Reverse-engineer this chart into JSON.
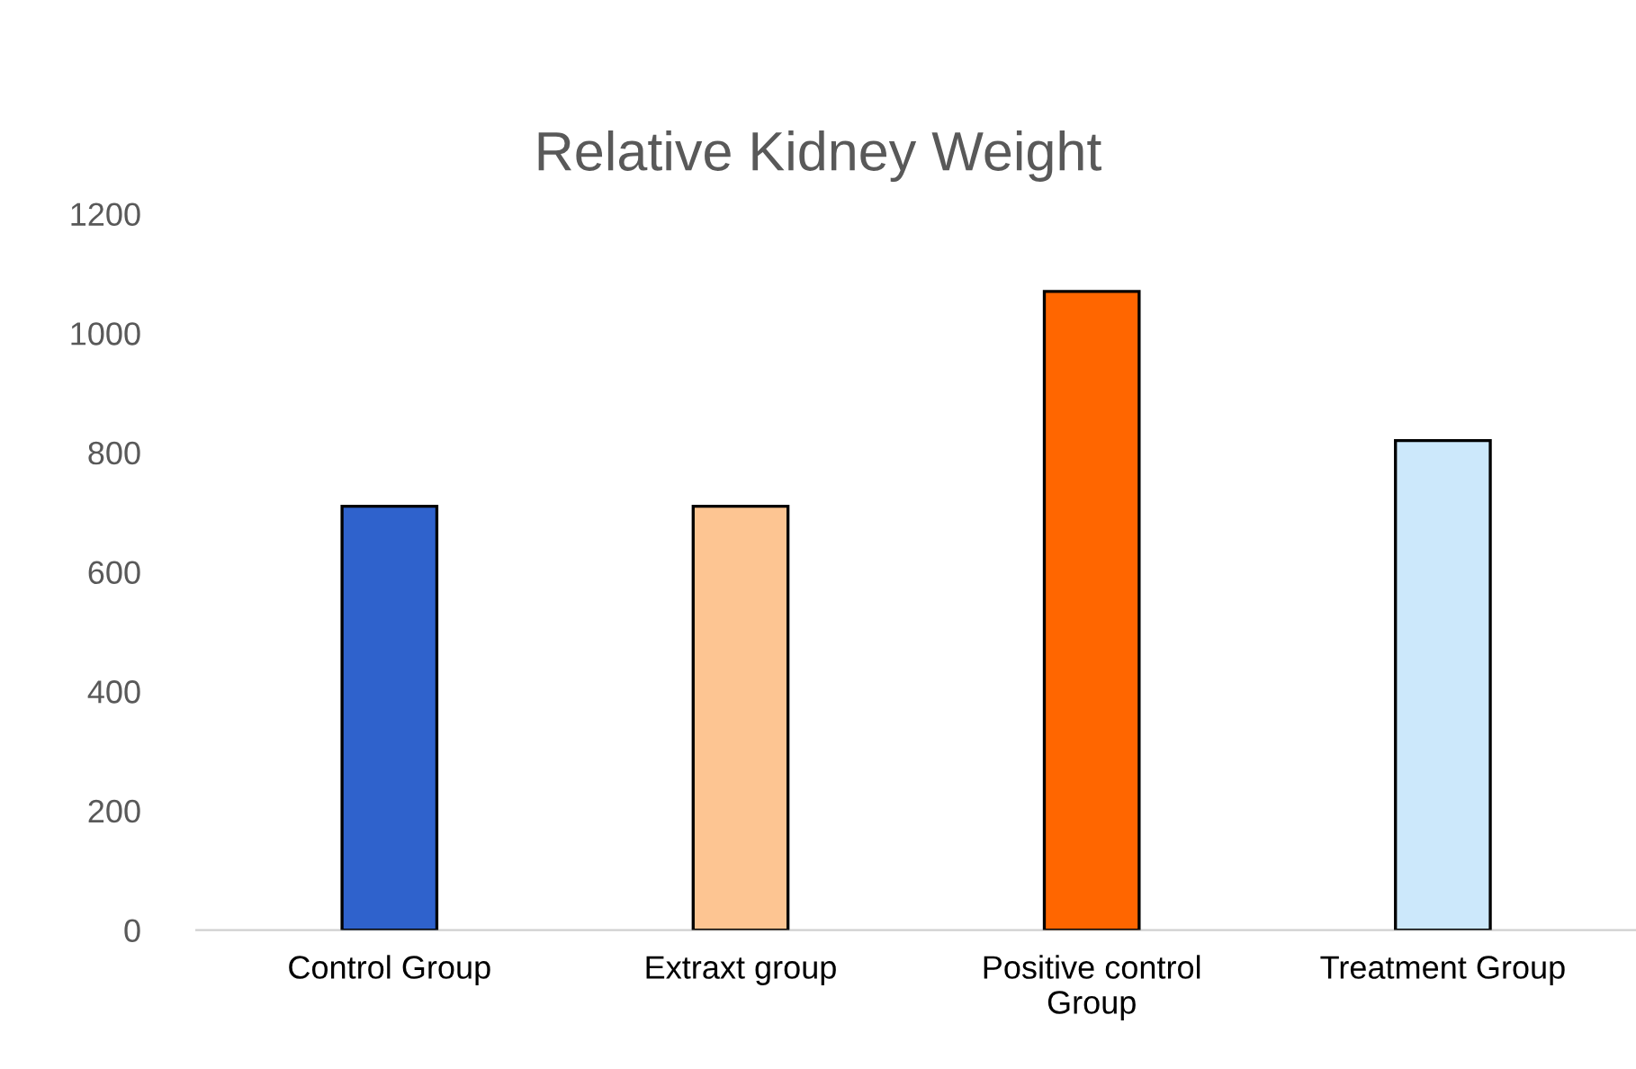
{
  "chart_data": {
    "type": "bar",
    "title": "Relative Kidney Weight",
    "categories": [
      "Control Group",
      "Extraxt group",
      "Positive control\nGroup",
      "Treatment Group"
    ],
    "values": [
      710,
      710,
      1070,
      820
    ],
    "colors": [
      "#2f62cc",
      "#fdc592",
      "#ff6600",
      "#cce8fb"
    ],
    "ylim": [
      0,
      1200
    ],
    "yticks": [
      0,
      200,
      400,
      600,
      800,
      1000,
      1200
    ],
    "grid": false
  }
}
